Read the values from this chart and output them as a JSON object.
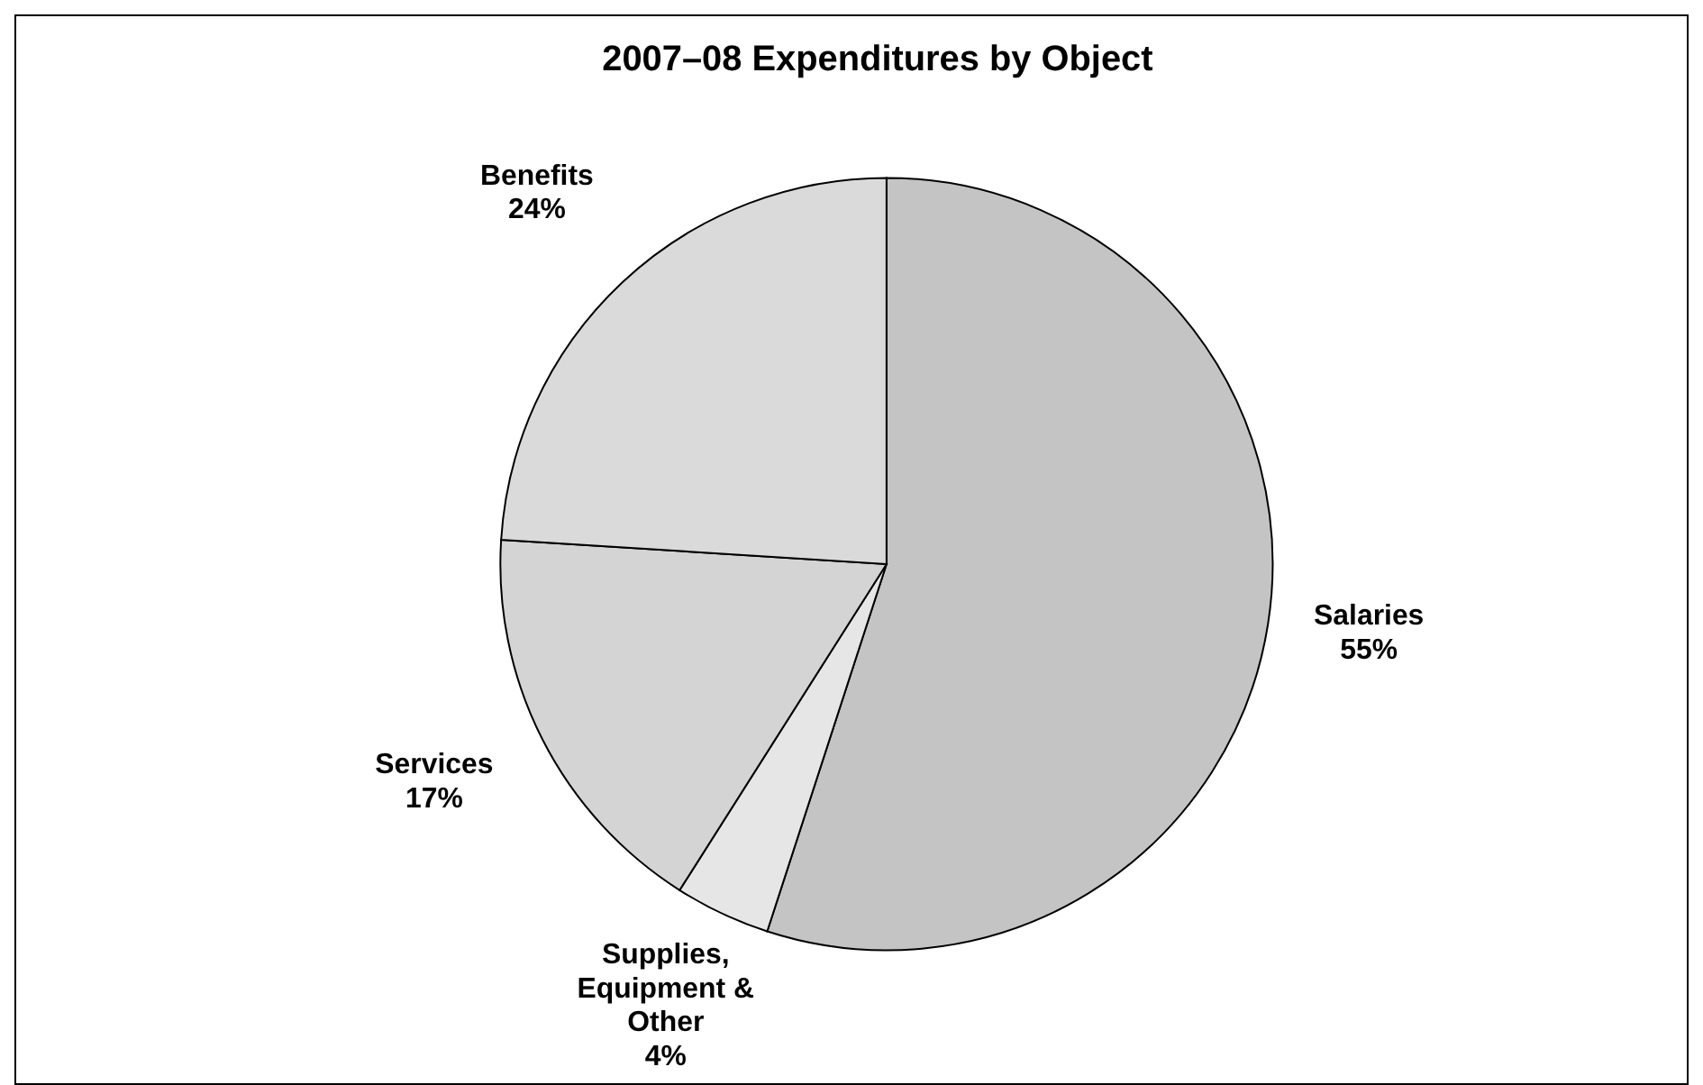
{
  "chart_data": {
    "type": "pie",
    "title": "2007–08 Expenditures by Object",
    "categories": [
      "Salaries",
      "Supplies, Equipment & Other",
      "Services",
      "Benefits"
    ],
    "values": [
      55,
      4,
      17,
      24
    ],
    "colors": [
      "#c4c4c4",
      "#e6e6e6",
      "#d4d4d4",
      "#dadada"
    ],
    "value_labels": [
      "55%",
      "4%",
      "17%",
      "24%"
    ],
    "legend": false
  }
}
